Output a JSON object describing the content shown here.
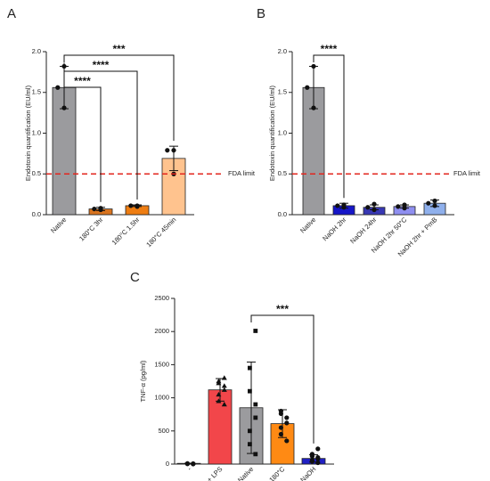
{
  "chart_data": [
    {
      "panel": "A",
      "type": "bar",
      "ylabel": "Endotoxin quantification (EU/ml)",
      "ylim": [
        0,
        2.0
      ],
      "yticks": [
        "0.0",
        "0.5",
        "1.0",
        "1.5",
        "2.0"
      ],
      "categories": [
        "Native",
        "180°C 3hr",
        "180°C 1.5hr",
        "180°C 45min"
      ],
      "values": [
        1.56,
        0.07,
        0.11,
        0.69
      ],
      "errors": [
        0.26,
        0.02,
        0.01,
        0.15
      ],
      "points": [
        [
          1.82,
          1.56,
          1.31
        ],
        [
          0.06,
          0.07,
          0.08
        ],
        [
          0.1,
          0.11,
          0.11
        ],
        [
          0.5,
          0.79,
          0.79
        ]
      ],
      "colors": [
        "#9b9b9e",
        "#d9741f",
        "#ee7d12",
        "#ffc38e"
      ],
      "reference_line": {
        "value": 0.5,
        "label": "FDA limit",
        "color": "#e3261e"
      },
      "significance": [
        {
          "from": 0,
          "to": 3,
          "label": "***"
        },
        {
          "from": 0,
          "to": 2,
          "label": "****"
        },
        {
          "from": 0,
          "to": 1,
          "label": "****"
        }
      ]
    },
    {
      "panel": "B",
      "type": "bar",
      "ylabel": "Endotoxin quantification (EU/ml)",
      "ylim": [
        0,
        2.0
      ],
      "yticks": [
        "0.0",
        "0.5",
        "1.0",
        "1.5",
        "2.0"
      ],
      "categories": [
        "Native",
        "NaOH 2hr",
        "NaOH 24hr",
        "NaOH 2hr 50°C",
        "NaOH 2hr + PmB"
      ],
      "values": [
        1.56,
        0.11,
        0.09,
        0.1,
        0.14
      ],
      "errors": [
        0.26,
        0.03,
        0.03,
        0.02,
        0.04
      ],
      "points": [
        [
          1.82,
          1.56,
          1.31
        ],
        [
          0.09,
          0.11,
          0.12
        ],
        [
          0.06,
          0.09,
          0.13
        ],
        [
          0.08,
          0.1,
          0.12
        ],
        [
          0.11,
          0.14,
          0.17
        ]
      ],
      "colors": [
        "#9b9b9e",
        "#1616c8",
        "#3838b4",
        "#8f8ff0",
        "#8fb0ec"
      ],
      "reference_line": {
        "value": 0.5,
        "label": "FDA limit",
        "color": "#e3261e"
      },
      "significance": [
        {
          "from": 0,
          "to": 1,
          "label": "****"
        }
      ]
    },
    {
      "panel": "C",
      "type": "bar",
      "ylabel": "TNF-α (pg/ml)",
      "ylim": [
        0,
        2500
      ],
      "yticks": [
        "0",
        "500",
        "1000",
        "1500",
        "2000",
        "2500"
      ],
      "categories": [
        "-",
        "+ LPS",
        "Native",
        "180°C",
        "NaOH"
      ],
      "values": [
        5,
        1120,
        850,
        610,
        85
      ],
      "errors": [
        8,
        170,
        690,
        210,
        55
      ],
      "points": [
        [
          2,
          5,
          8,
          3,
          6,
          4,
          7,
          5
        ],
        [
          900,
          950,
          1050,
          1120,
          1180,
          1220,
          1250,
          1300
        ],
        [
          150,
          300,
          500,
          700,
          900,
          1100,
          1450,
          2010
        ],
        [
          350,
          450,
          550,
          620,
          700,
          760,
          800
        ],
        [
          20,
          40,
          60,
          80,
          100,
          120,
          150,
          230
        ]
      ],
      "point_shapes": [
        "circle",
        "triangle",
        "square",
        "circle",
        "circle"
      ],
      "colors": [
        "#222222",
        "#f2464a",
        "#9b9b9e",
        "#ff8a14",
        "#2020c4"
      ],
      "significance": [
        {
          "from": 2,
          "to": 4,
          "label": "***"
        }
      ]
    }
  ]
}
